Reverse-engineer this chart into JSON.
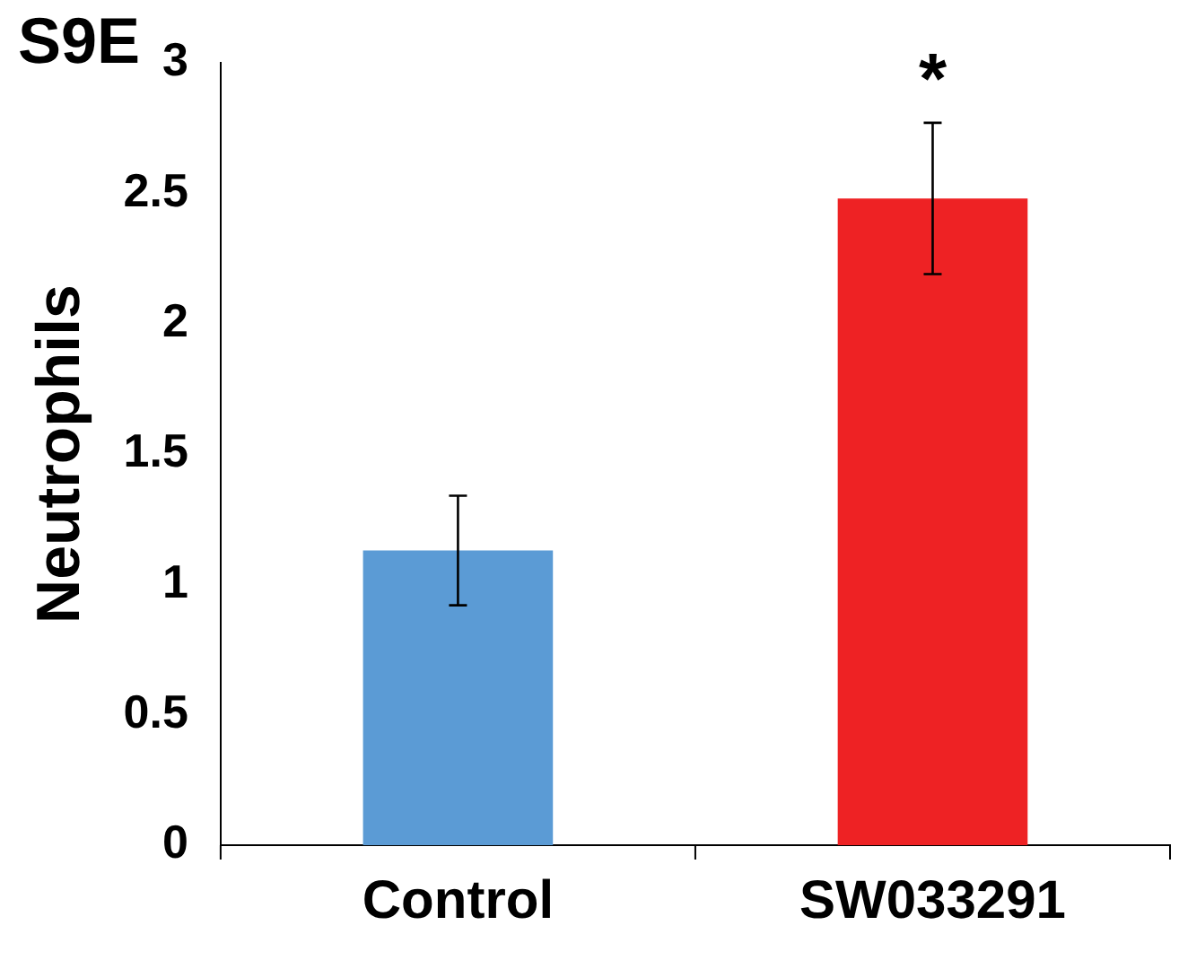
{
  "chart_data": {
    "type": "bar",
    "ylabel": "Neutrophils",
    "categories": [
      "Control",
      "SW033291"
    ],
    "values": [
      1.13,
      2.48
    ],
    "colors": [
      "#5b9bd5",
      "#ee2224"
    ],
    "errors": [
      0.21,
      0.29
    ],
    "ylim": [
      0,
      3
    ],
    "yticks": [
      0,
      0.5,
      1,
      1.5,
      2,
      2.5,
      3
    ],
    "grid": false,
    "legend": false,
    "annotations": [
      "S9E",
      "*"
    ]
  }
}
